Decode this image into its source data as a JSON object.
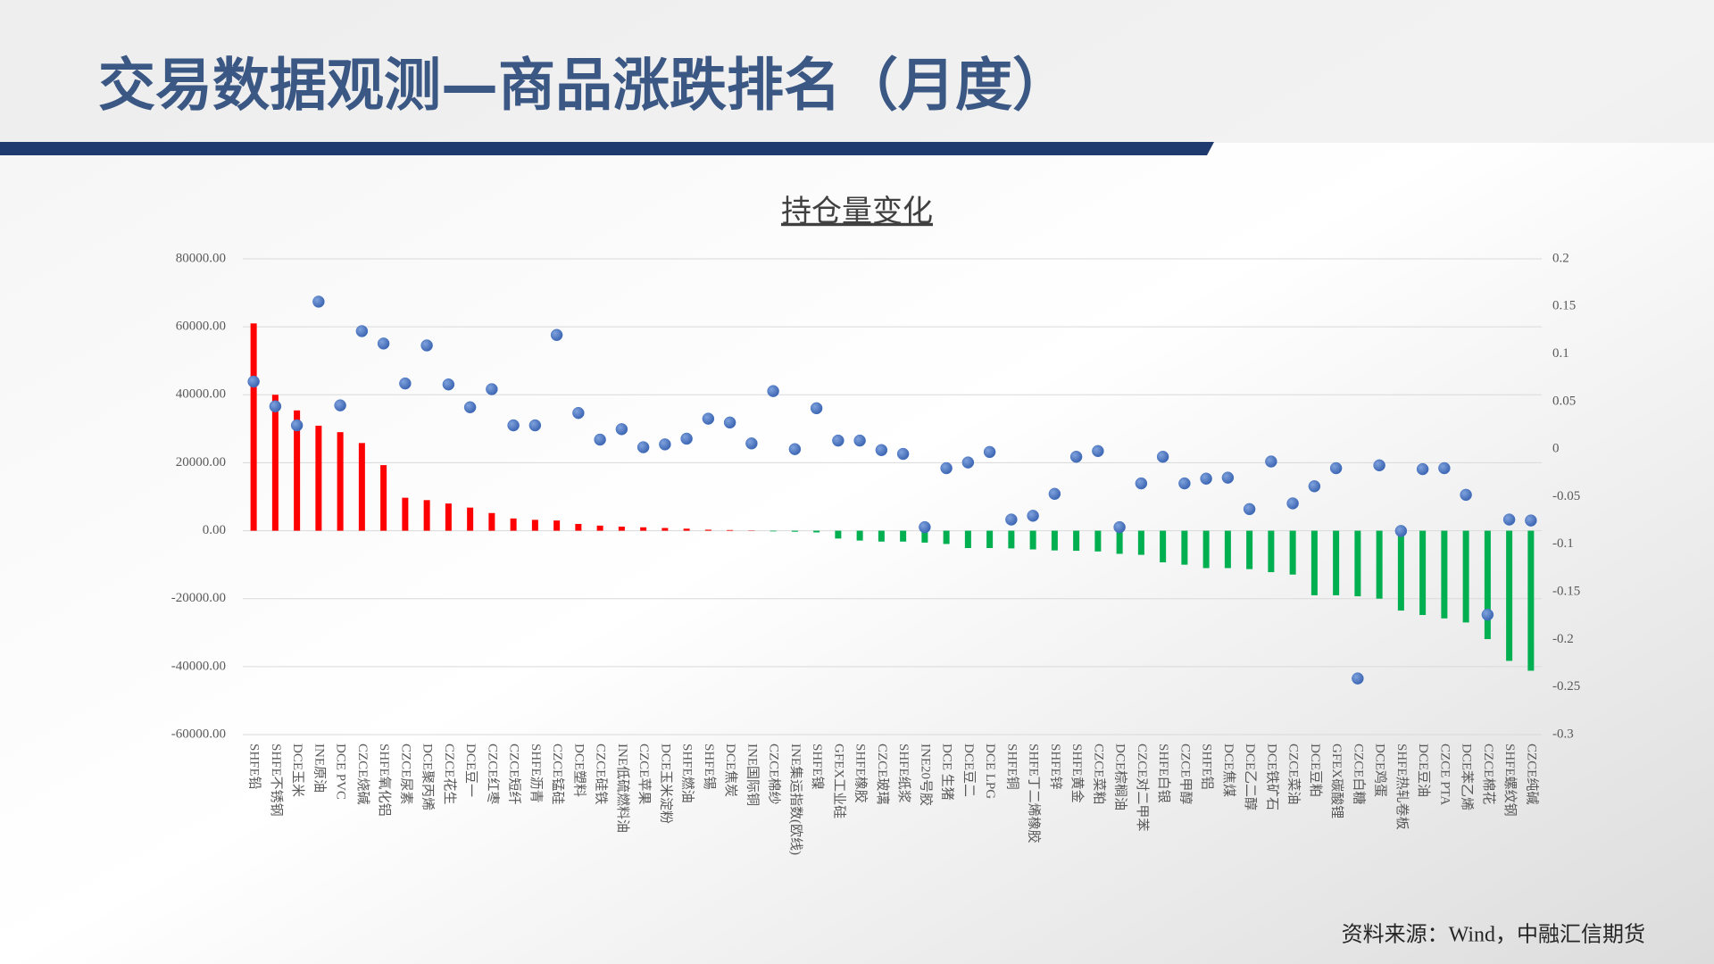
{
  "header": {
    "title": "交易数据观测—商品涨跌排名（月度）"
  },
  "chart_data": {
    "type": "combo",
    "title": "持仓量变化",
    "categories": [
      "SHFE铅",
      "SHFE不锈钢",
      "DCE玉米",
      "INE原油",
      "DCE PVC",
      "CZCE烧碱",
      "SHFE氧化铝",
      "CZCE尿素",
      "DCE聚丙烯",
      "CZCE花生",
      "DCE豆一",
      "CZCE红枣",
      "CZCE短纤",
      "SHFE沥青",
      "CZCE锰硅",
      "DCE塑料",
      "CZCE硅铁",
      "INE低硫燃料油",
      "CZCE苹果",
      "DCE玉米淀粉",
      "SHFE燃油",
      "SHFE锡",
      "DCE焦炭",
      "INE国际铜",
      "CZCE棉纱",
      "INE集运指数(欧线)",
      "SHFE镍",
      "GFEX工业硅",
      "SHFE橡胶",
      "CZCE玻璃",
      "SHFE纸浆",
      "INE20号胶",
      "DCE 生猪",
      "DCE豆二",
      "DCE LPG",
      "SHFE铜",
      "SHFE丁二烯橡胶",
      "SHFE锌",
      "SHFE黄金",
      "CZCE菜粕",
      "DCE棕榈油",
      "CZCE对二甲苯",
      "SHFE白银",
      "CZCE甲醇",
      "SHFE铝",
      "DCE焦煤",
      "DCE乙二醇",
      "DCE铁矿石",
      "CZCE菜油",
      "DCE豆粕",
      "GFEX碳酸锂",
      "CZCE白糖",
      "DCE鸡蛋",
      "SHFE热轧卷板",
      "DCE豆油",
      "CZCE PTA",
      "DCE苯乙烯",
      "CZCE棉花",
      "SHFE螺纹钢",
      "CZCE纯碱"
    ],
    "series": [
      {
        "type": "bar",
        "positive_color": "#ff0000",
        "negative_color": "#00b050",
        "values": [
          61000,
          40000,
          35400,
          30900,
          29000,
          25800,
          19300,
          9700,
          9000,
          8000,
          6800,
          5200,
          3600,
          3200,
          3000,
          2000,
          1500,
          1200,
          1000,
          800,
          600,
          300,
          200,
          100,
          -200,
          -300,
          -500,
          -2300,
          -2900,
          -3200,
          -3200,
          -3500,
          -3900,
          -5100,
          -5100,
          -5200,
          -5500,
          -5800,
          -5900,
          -6100,
          -6800,
          -7100,
          -9300,
          -10000,
          -11000,
          -11000,
          -11300,
          -12200,
          -12900,
          -19000,
          -19000,
          -19300,
          -20000,
          -23500,
          -24800,
          -25800,
          -27000,
          -31900,
          -38300,
          -41200
        ]
      },
      {
        "type": "scatter",
        "axis": "y2",
        "color": "#4472c4",
        "values": [
          0.071,
          0.045,
          0.025,
          0.155,
          0.046,
          0.124,
          0.111,
          0.069,
          0.109,
          0.068,
          0.044,
          0.063,
          0.025,
          0.025,
          0.12,
          0.038,
          0.01,
          0.021,
          0.002,
          0.005,
          0.011,
          0.032,
          0.028,
          0.006,
          0.061,
          0,
          0.043,
          0.009,
          0.009,
          -0.001,
          -0.005,
          -0.082,
          -0.02,
          -0.014,
          -0.003,
          -0.074,
          -0.07,
          -0.047,
          -0.008,
          -0.002,
          -0.082,
          -0.036,
          -0.008,
          -0.036,
          -0.031,
          -0.03,
          -0.063,
          -0.013,
          -0.057,
          -0.039,
          -0.02,
          -0.241,
          -0.017,
          -0.086,
          -0.021,
          -0.02,
          -0.048,
          -0.174,
          -0.074,
          -0.075
        ]
      }
    ],
    "ylim": [
      -60000,
      80000
    ],
    "yticks": [
      {
        "value": -60000,
        "label": "-60000.00"
      },
      {
        "value": -40000,
        "label": "-40000.00"
      },
      {
        "value": -20000,
        "label": "-20000.00"
      },
      {
        "value": 0,
        "label": "0.00"
      },
      {
        "value": 20000,
        "label": "20000.00"
      },
      {
        "value": 40000,
        "label": "40000.00"
      },
      {
        "value": 60000,
        "label": "60000.00"
      },
      {
        "value": 80000,
        "label": "80000.00"
      }
    ],
    "y2lim": [
      -0.3,
      0.2
    ],
    "y2ticks": [
      -0.3,
      -0.25,
      -0.2,
      -0.15,
      -0.1,
      -0.05,
      0,
      0.05,
      0.1,
      0.15,
      0.2
    ],
    "grid": true
  },
  "footer": {
    "source": "资料来源：Wind，中融汇信期货"
  }
}
